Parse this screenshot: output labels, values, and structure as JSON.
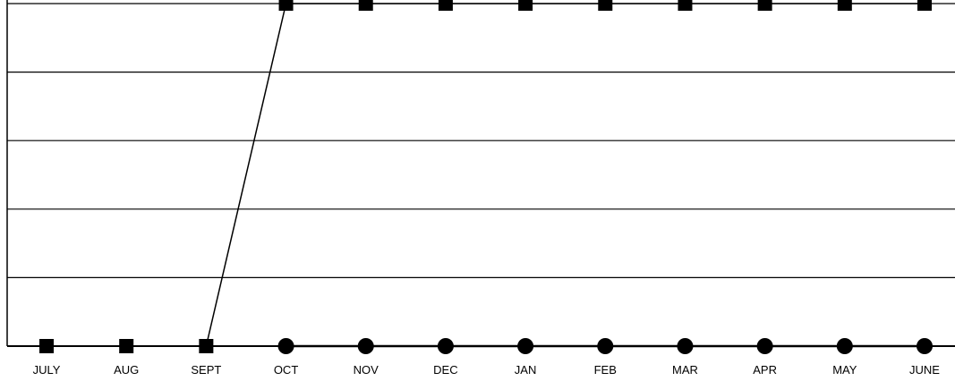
{
  "chart_data": {
    "type": "line",
    "title": "",
    "xlabel": "",
    "ylabel": "",
    "categories": [
      "JULY",
      "AUG",
      "SEPT",
      "OCT",
      "NOV",
      "DEC",
      "JAN",
      "FEB",
      "MAR",
      "APR",
      "MAY",
      "JUNE"
    ],
    "ylim": [
      0,
      5
    ],
    "grid": true,
    "series": [
      {
        "marker": "square",
        "color": "#000000",
        "values": [
          0,
          0,
          0,
          5,
          5,
          5,
          5,
          5,
          5,
          5,
          5,
          5
        ]
      },
      {
        "marker": "circle",
        "color": "#000000",
        "values": [
          null,
          null,
          null,
          0,
          0,
          0,
          0,
          0,
          0,
          0,
          0,
          0
        ]
      }
    ]
  }
}
